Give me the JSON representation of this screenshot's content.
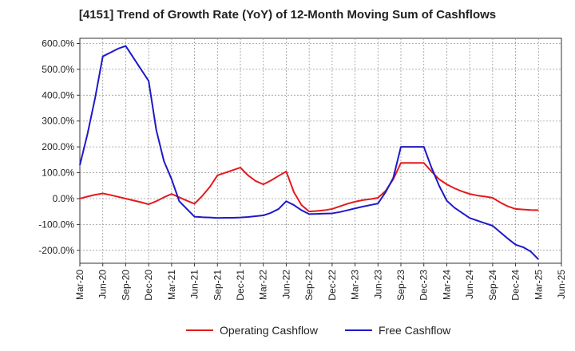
{
  "chart_data": {
    "type": "line",
    "title": "[4151]  Trend of Growth Rate (YoY) of 12-Month Moving Sum of Cashflows",
    "xlabel": "",
    "ylabel": "",
    "ylim": [
      -250,
      620
    ],
    "yticks": [
      -200,
      -100,
      0,
      100,
      200,
      300,
      400,
      500,
      600
    ],
    "ytick_labels": [
      "-200.0%",
      "-100.0%",
      "0.0%",
      "100.0%",
      "200.0%",
      "300.0%",
      "400.0%",
      "500.0%",
      "600.0%"
    ],
    "xtick_labels": [
      "Mar-20",
      "Jun-20",
      "Sep-20",
      "Dec-20",
      "Mar-21",
      "Jun-21",
      "Sep-21",
      "Dec-21",
      "Mar-22",
      "Jun-22",
      "Sep-22",
      "Dec-22",
      "Mar-23",
      "Jun-23",
      "Sep-23",
      "Dec-23",
      "Mar-24",
      "Jun-24",
      "Sep-24",
      "Dec-24",
      "Mar-25",
      "Jun-25"
    ],
    "x": [
      "Mar-20",
      "Apr-20",
      "May-20",
      "Jun-20",
      "Jul-20",
      "Aug-20",
      "Sep-20",
      "Oct-20",
      "Nov-20",
      "Dec-20",
      "Jan-21",
      "Feb-21",
      "Mar-21",
      "Apr-21",
      "May-21",
      "Jun-21",
      "Jul-21",
      "Aug-21",
      "Sep-21",
      "Oct-21",
      "Nov-21",
      "Dec-21",
      "Jan-22",
      "Feb-22",
      "Mar-22",
      "Apr-22",
      "May-22",
      "Jun-22",
      "Jul-22",
      "Aug-22",
      "Sep-22",
      "Oct-22",
      "Nov-22",
      "Dec-22",
      "Jan-23",
      "Feb-23",
      "Mar-23",
      "Apr-23",
      "May-23",
      "Jun-23",
      "Jul-23",
      "Aug-23",
      "Sep-23",
      "Oct-23",
      "Nov-23",
      "Dec-23",
      "Jan-24",
      "Feb-24",
      "Mar-24",
      "Apr-24",
      "May-24",
      "Jun-24",
      "Jul-24",
      "Aug-24",
      "Sep-24",
      "Oct-24",
      "Nov-24",
      "Dec-24",
      "Jan-25",
      "Feb-25",
      "Mar-25"
    ],
    "series": [
      {
        "name": "Operating Cashflow",
        "color": "#e31a1c",
        "values": [
          0,
          8,
          15,
          20,
          14,
          7,
          0,
          -7,
          -14,
          -22,
          -10,
          5,
          18,
          5,
          -8,
          -20,
          10,
          45,
          90,
          100,
          110,
          120,
          90,
          68,
          55,
          70,
          88,
          105,
          25,
          -25,
          -50,
          -48,
          -45,
          -40,
          -30,
          -20,
          -12,
          -6,
          -2,
          3,
          30,
          75,
          138,
          138,
          138,
          138,
          105,
          75,
          55,
          40,
          28,
          18,
          12,
          8,
          3,
          -15,
          -30,
          -40,
          -42,
          -44,
          -45
        ]
      },
      {
        "name": "Free Cashflow",
        "color": "#1f18c8",
        "values": [
          130,
          250,
          390,
          550,
          565,
          580,
          590,
          545,
          500,
          455,
          265,
          145,
          75,
          -10,
          -40,
          -70,
          -72,
          -73,
          -75,
          -74,
          -74,
          -73,
          -71,
          -68,
          -65,
          -55,
          -40,
          -10,
          -25,
          -45,
          -60,
          -59,
          -58,
          -57,
          -52,
          -45,
          -38,
          -31,
          -25,
          -19,
          25,
          80,
          200,
          200,
          200,
          200,
          120,
          50,
          -8,
          -35,
          -55,
          -75,
          -85,
          -95,
          -105,
          -130,
          -155,
          -178,
          -188,
          -205,
          -235
        ]
      }
    ],
    "grid": true,
    "legend_position": "bottom-center"
  }
}
